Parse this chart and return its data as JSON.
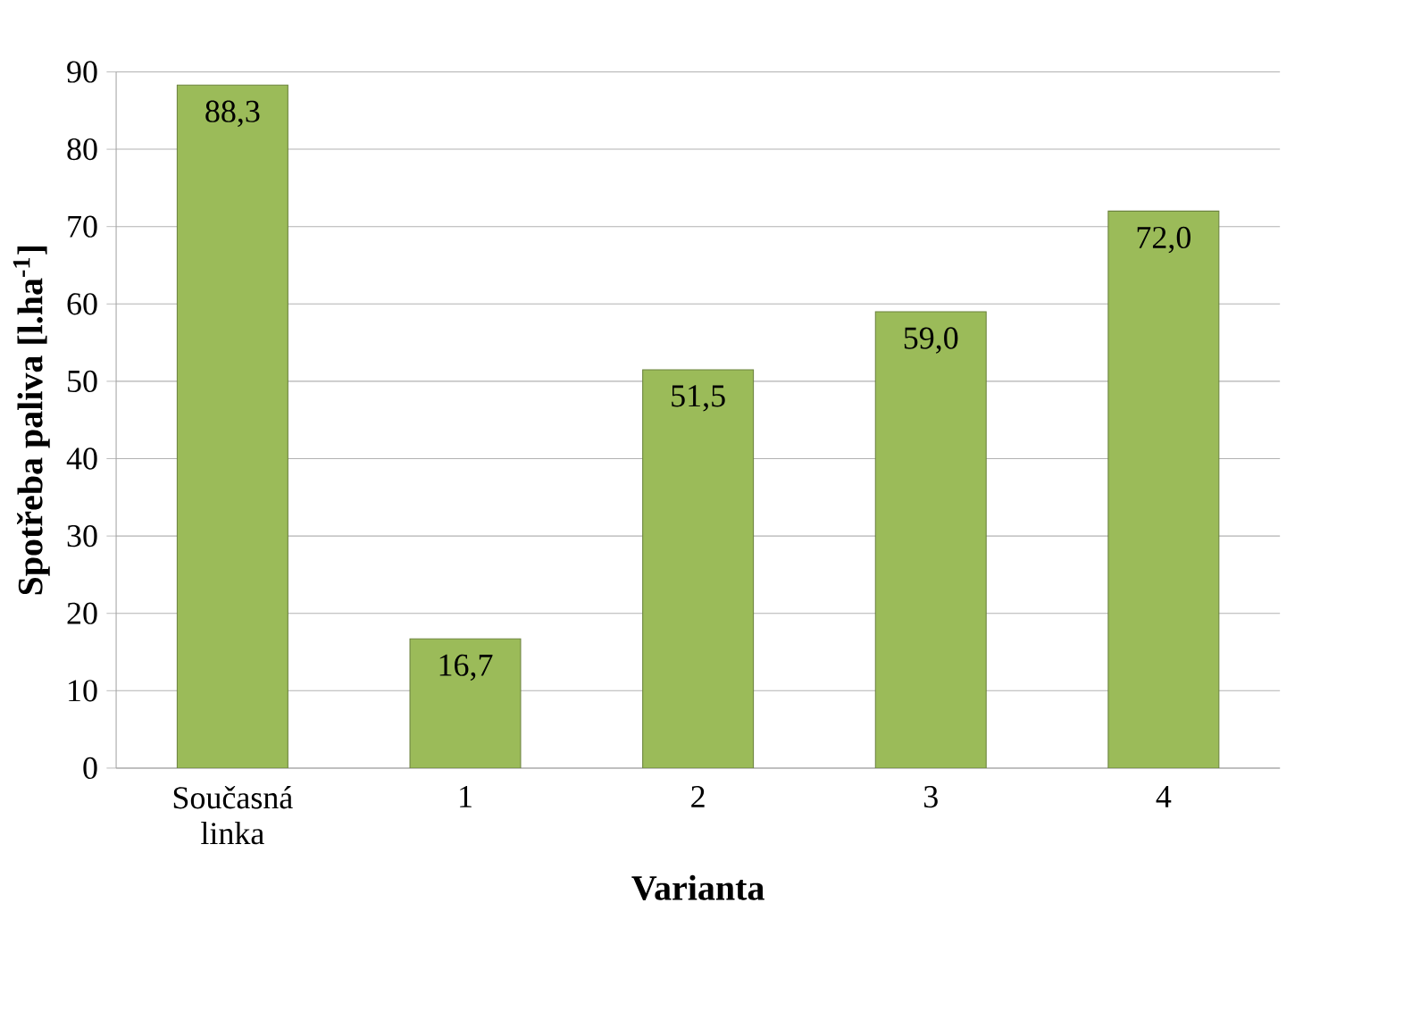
{
  "chart_data": {
    "type": "bar",
    "xlabel": "Varianta",
    "ylabel": "Spotřeba paliva [l.ha$^{-1}$]",
    "categories": [
      "Současná linka",
      "1",
      "2",
      "3",
      "4"
    ],
    "values": [
      88.3,
      16.7,
      51.5,
      59.0,
      72.0
    ],
    "value_labels": [
      "88,3",
      "16,7",
      "51,5",
      "59,0",
      "72,0"
    ],
    "color": "#9bbb59",
    "ylim": [
      0,
      90
    ],
    "yticks": [
      0,
      10,
      20,
      30,
      40,
      50,
      60,
      70,
      80,
      90
    ],
    "grid": "y"
  }
}
